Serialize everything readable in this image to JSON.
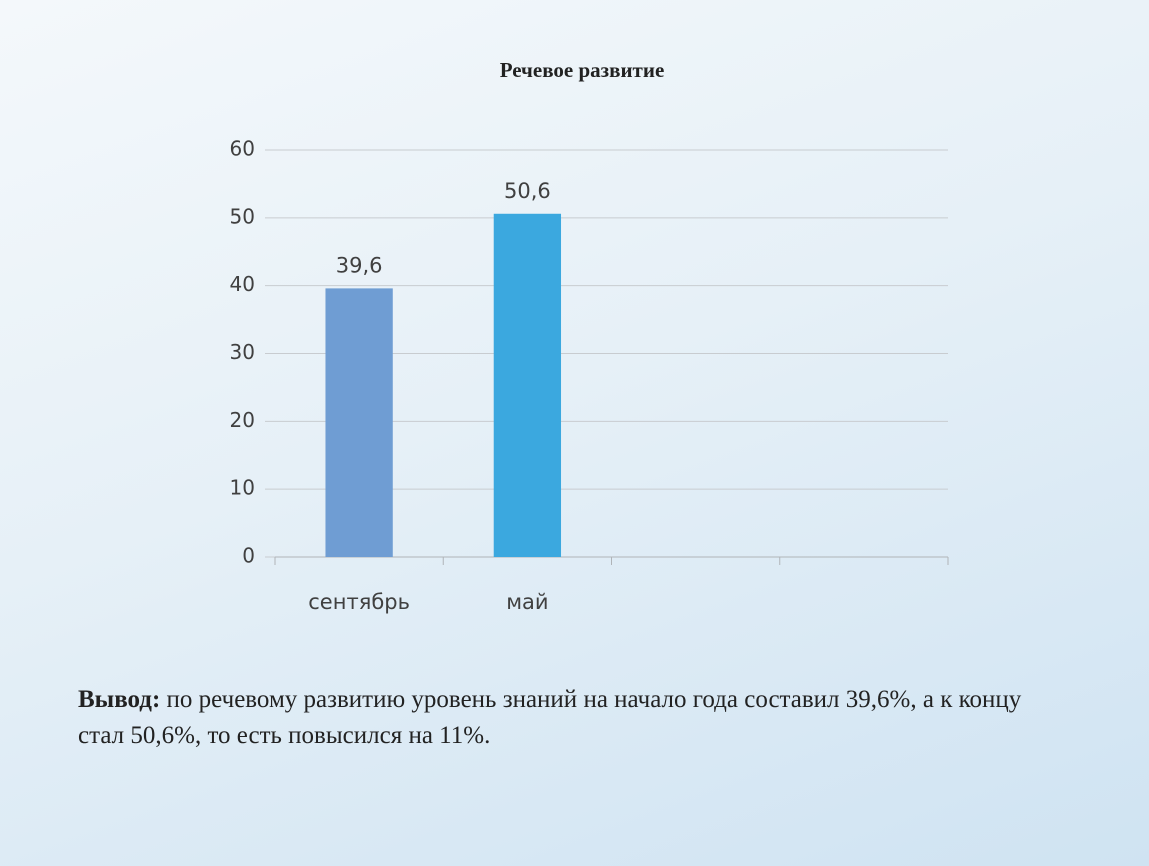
{
  "chart_data": {
    "type": "bar",
    "title": "Речевое развитие",
    "categories": [
      "сентябрь",
      "май",
      null,
      null
    ],
    "values": [
      39.6,
      50.6,
      null,
      null
    ],
    "value_labels": [
      "39,6",
      "50,6",
      null,
      null
    ],
    "colors": [
      "#6f9dd3",
      "#3ba8df",
      null,
      null
    ],
    "ylim": [
      0,
      60
    ],
    "yticks": [
      0,
      10,
      20,
      30,
      40,
      50,
      60
    ],
    "grid": true
  },
  "conclusion": {
    "label": "Вывод:",
    "text": "по речевому развитию уровень знаний на начало года составил 39,6%, а к концу стал 50,6%, то есть повысился на 11%."
  }
}
